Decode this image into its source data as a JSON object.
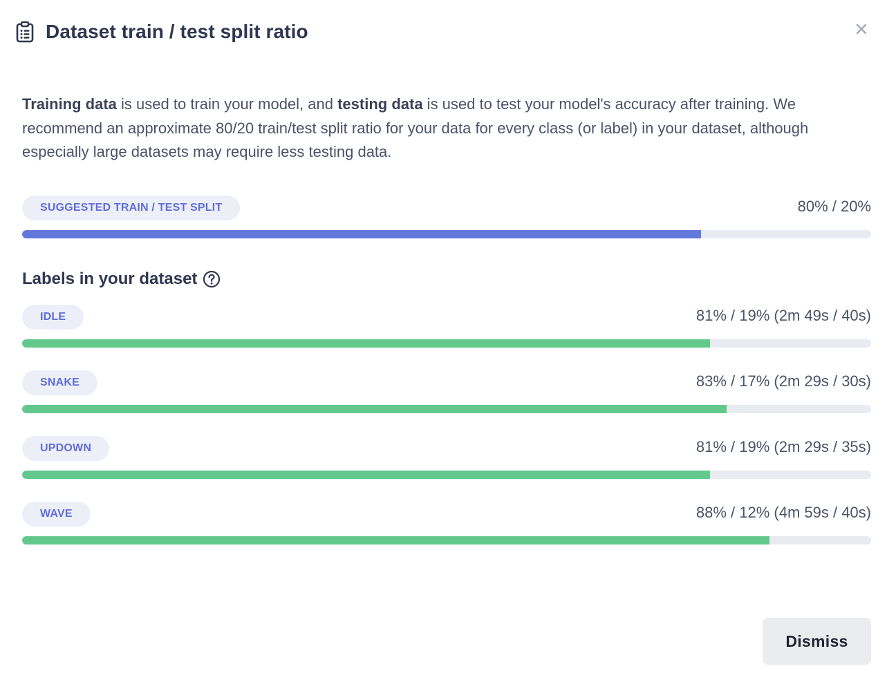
{
  "header": {
    "title": "Dataset train / test split ratio",
    "icon": "clipboard-list-icon",
    "close_icon": "close-icon"
  },
  "description": {
    "part1_bold": "Training data",
    "part2": " is used to train your model, and ",
    "part3_bold": "testing data",
    "part4": " is used to test your model's accuracy after training. We recommend an approximate 80/20 train/test split ratio for your data for every class (or label) in your dataset, although especially large datasets may require less testing data."
  },
  "suggested": {
    "label": "SUGGESTED TRAIN / TEST SPLIT",
    "value": "80% / 20%",
    "train_fraction": 0.8,
    "color": "#6478dc"
  },
  "labels_section": {
    "title": "Labels in your dataset",
    "help_icon": "question-circle-icon"
  },
  "labels": [
    {
      "name": "IDLE",
      "value": "81% / 19% (2m 49s / 40s)",
      "train_fraction": 0.81
    },
    {
      "name": "SNAKE",
      "value": "83% / 17% (2m 29s / 30s)",
      "train_fraction": 0.83
    },
    {
      "name": "UPDOWN",
      "value": "81% / 19% (2m 29s / 35s)",
      "train_fraction": 0.81
    },
    {
      "name": "WAVE",
      "value": "88% / 12% (4m 59s / 40s)",
      "train_fraction": 0.88
    }
  ],
  "label_bar_color": "#62c88c",
  "footer": {
    "dismiss_label": "Dismiss"
  }
}
